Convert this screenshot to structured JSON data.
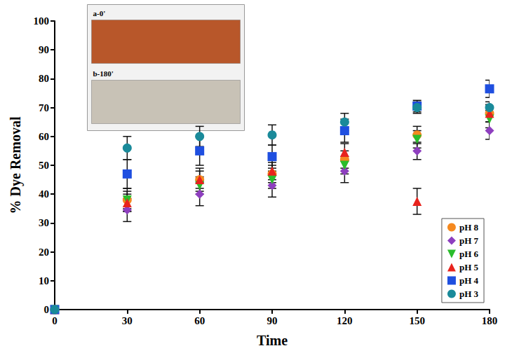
{
  "chart_data": {
    "type": "scatter",
    "x_label": "Time",
    "y_label": "% Dye Removal",
    "x": [
      0,
      30,
      60,
      90,
      120,
      150,
      180
    ],
    "xlim": [
      0,
      180
    ],
    "xticks": [
      0,
      30,
      60,
      90,
      120,
      150,
      180
    ],
    "ylim": [
      0,
      100
    ],
    "yticks": [
      0,
      10,
      20,
      30,
      40,
      50,
      60,
      70,
      80,
      90,
      100
    ],
    "grid": false,
    "legend": "lower right",
    "annotations": [
      "a-0'",
      "b-180'"
    ],
    "series": [
      {
        "name": "pH 8",
        "color": "#f5891f",
        "marker": "circle",
        "values": [
          0,
          38,
          45,
          47,
          52,
          60.5,
          68
        ],
        "errors": [
          0,
          4,
          4,
          3,
          3,
          3,
          3
        ]
      },
      {
        "name": "pH 7",
        "color": "#8e3fbf",
        "marker": "diamond",
        "values": [
          0,
          34.5,
          40,
          43,
          48,
          55,
          62
        ],
        "errors": [
          0,
          4,
          4,
          4,
          4,
          3,
          3
        ]
      },
      {
        "name": "pH 6",
        "color": "#2bbd2b",
        "marker": "triangle-down",
        "values": [
          0,
          38,
          43,
          45,
          50,
          59,
          66
        ],
        "errors": [
          0,
          3,
          3,
          3,
          3,
          3,
          3
        ]
      },
      {
        "name": "pH 5",
        "color": "#e8231d",
        "marker": "triangle",
        "values": [
          0,
          37,
          45,
          48,
          54.5,
          37.5,
          68
        ],
        "errors": [
          0,
          3,
          3,
          3,
          3,
          4.5,
          3
        ]
      },
      {
        "name": "pH 4",
        "color": "#1f4fe0",
        "marker": "square",
        "values": [
          0,
          47,
          55,
          53,
          62,
          70.5,
          76.5
        ],
        "errors": [
          0,
          5,
          5,
          4,
          4,
          2,
          3
        ]
      },
      {
        "name": "pH 3",
        "color": "#1a8a9a",
        "marker": "circle",
        "values": [
          0,
          56,
          60,
          60.5,
          65,
          70,
          70
        ],
        "errors": [
          0,
          4,
          3.5,
          3.5,
          3,
          2,
          2
        ]
      }
    ]
  }
}
